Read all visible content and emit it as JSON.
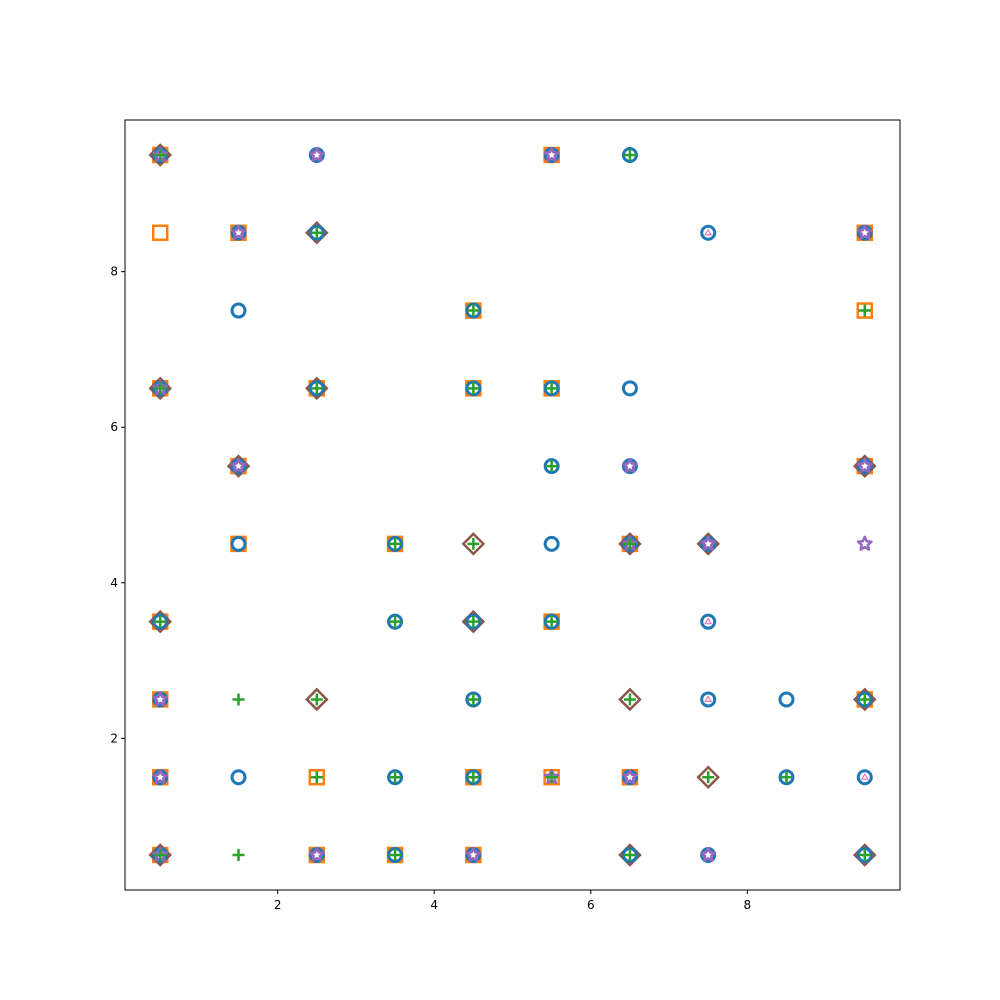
{
  "chart_data": {
    "type": "scatter",
    "title": "",
    "xlabel": "",
    "ylabel": "",
    "xlim": [
      0.05,
      9.95
    ],
    "ylim": [
      0.05,
      9.95
    ],
    "grid": false,
    "legend": "none",
    "x_ticks": [
      2,
      4,
      6,
      8
    ],
    "y_ticks": [
      2,
      4,
      6,
      8
    ],
    "x_tick_labels": [
      "2",
      "4",
      "6",
      "8"
    ],
    "y_tick_labels": [
      "2",
      "4",
      "6",
      "8"
    ],
    "series": [
      {
        "marker": "square",
        "color": "#ff7f0e",
        "points": [
          [
            0.5,
            9.5
          ],
          [
            5.5,
            9.5
          ],
          [
            0.5,
            8.5
          ],
          [
            1.5,
            8.5
          ],
          [
            9.5,
            8.5
          ],
          [
            4.5,
            7.5
          ],
          [
            9.5,
            7.5
          ],
          [
            0.5,
            6.5
          ],
          [
            2.5,
            6.5
          ],
          [
            4.5,
            6.5
          ],
          [
            5.5,
            6.5
          ],
          [
            1.5,
            5.5
          ],
          [
            9.5,
            5.5
          ],
          [
            1.5,
            4.5
          ],
          [
            3.5,
            4.5
          ],
          [
            6.5,
            4.5
          ],
          [
            0.5,
            3.5
          ],
          [
            5.5,
            3.5
          ],
          [
            0.5,
            2.5
          ],
          [
            9.5,
            2.5
          ],
          [
            0.5,
            1.5
          ],
          [
            2.5,
            1.5
          ],
          [
            4.5,
            1.5
          ],
          [
            5.5,
            1.5
          ],
          [
            6.5,
            1.5
          ],
          [
            0.5,
            0.5
          ],
          [
            2.5,
            0.5
          ],
          [
            3.5,
            0.5
          ],
          [
            4.5,
            0.5
          ]
        ]
      },
      {
        "marker": "diamond",
        "color": "#8c564b",
        "points": [
          [
            0.5,
            9.5
          ],
          [
            2.5,
            8.5
          ],
          [
            0.5,
            6.5
          ],
          [
            2.5,
            6.5
          ],
          [
            1.5,
            5.5
          ],
          [
            9.5,
            5.5
          ],
          [
            4.5,
            4.5
          ],
          [
            6.5,
            4.5
          ],
          [
            7.5,
            4.5
          ],
          [
            0.5,
            3.5
          ],
          [
            4.5,
            3.5
          ],
          [
            2.5,
            2.5
          ],
          [
            6.5,
            2.5
          ],
          [
            9.5,
            2.5
          ],
          [
            7.5,
            1.5
          ],
          [
            0.5,
            0.5
          ],
          [
            6.5,
            0.5
          ],
          [
            9.5,
            0.5
          ]
        ]
      },
      {
        "marker": "circle",
        "color": "#1f77b4",
        "points": [
          [
            0.5,
            9.5
          ],
          [
            2.5,
            9.5
          ],
          [
            5.5,
            9.5
          ],
          [
            6.5,
            9.5
          ],
          [
            1.5,
            8.5
          ],
          [
            2.5,
            8.5
          ],
          [
            7.5,
            8.5
          ],
          [
            9.5,
            8.5
          ],
          [
            1.5,
            7.5
          ],
          [
            4.5,
            7.5
          ],
          [
            0.5,
            6.5
          ],
          [
            2.5,
            6.5
          ],
          [
            4.5,
            6.5
          ],
          [
            5.5,
            6.5
          ],
          [
            6.5,
            6.5
          ],
          [
            1.5,
            5.5
          ],
          [
            5.5,
            5.5
          ],
          [
            6.5,
            5.5
          ],
          [
            9.5,
            5.5
          ],
          [
            1.5,
            4.5
          ],
          [
            3.5,
            4.5
          ],
          [
            5.5,
            4.5
          ],
          [
            6.5,
            4.5
          ],
          [
            7.5,
            4.5
          ],
          [
            0.5,
            3.5
          ],
          [
            3.5,
            3.5
          ],
          [
            4.5,
            3.5
          ],
          [
            5.5,
            3.5
          ],
          [
            7.5,
            3.5
          ],
          [
            0.5,
            2.5
          ],
          [
            4.5,
            2.5
          ],
          [
            7.5,
            2.5
          ],
          [
            8.5,
            2.5
          ],
          [
            9.5,
            2.5
          ],
          [
            0.5,
            1.5
          ],
          [
            1.5,
            1.5
          ],
          [
            3.5,
            1.5
          ],
          [
            4.5,
            1.5
          ],
          [
            6.5,
            1.5
          ],
          [
            8.5,
            1.5
          ],
          [
            9.5,
            1.5
          ],
          [
            0.5,
            0.5
          ],
          [
            2.5,
            0.5
          ],
          [
            3.5,
            0.5
          ],
          [
            4.5,
            0.5
          ],
          [
            6.5,
            0.5
          ],
          [
            7.5,
            0.5
          ],
          [
            9.5,
            0.5
          ]
        ]
      },
      {
        "marker": "star",
        "color": "#9467bd",
        "points": [
          [
            0.5,
            9.5
          ],
          [
            2.5,
            9.5
          ],
          [
            5.5,
            9.5
          ],
          [
            1.5,
            8.5
          ],
          [
            9.5,
            8.5
          ],
          [
            0.5,
            6.5
          ],
          [
            1.5,
            5.5
          ],
          [
            6.5,
            5.5
          ],
          [
            9.5,
            5.5
          ],
          [
            6.5,
            4.5
          ],
          [
            7.5,
            4.5
          ],
          [
            9.5,
            4.5
          ],
          [
            0.5,
            2.5
          ],
          [
            0.5,
            1.5
          ],
          [
            5.5,
            1.5
          ],
          [
            6.5,
            1.5
          ],
          [
            0.5,
            0.5
          ],
          [
            2.5,
            0.5
          ],
          [
            4.5,
            0.5
          ],
          [
            7.5,
            0.5
          ]
        ]
      },
      {
        "marker": "triangle",
        "color": "#e377c2",
        "points": [
          [
            7.5,
            8.5
          ],
          [
            7.5,
            3.5
          ],
          [
            7.5,
            2.5
          ],
          [
            9.5,
            1.5
          ]
        ]
      },
      {
        "marker": "plus",
        "color": "#2ca02c",
        "points": [
          [
            0.5,
            9.5
          ],
          [
            6.5,
            9.5
          ],
          [
            2.5,
            8.5
          ],
          [
            4.5,
            7.5
          ],
          [
            9.5,
            7.5
          ],
          [
            0.5,
            6.5
          ],
          [
            2.5,
            6.5
          ],
          [
            4.5,
            6.5
          ],
          [
            5.5,
            6.5
          ],
          [
            5.5,
            5.5
          ],
          [
            3.5,
            4.5
          ],
          [
            4.5,
            4.5
          ],
          [
            6.5,
            4.5
          ],
          [
            0.5,
            3.5
          ],
          [
            3.5,
            3.5
          ],
          [
            4.5,
            3.5
          ],
          [
            5.5,
            3.5
          ],
          [
            1.5,
            2.5
          ],
          [
            2.5,
            2.5
          ],
          [
            4.5,
            2.5
          ],
          [
            6.5,
            2.5
          ],
          [
            9.5,
            2.5
          ],
          [
            2.5,
            1.5
          ],
          [
            3.5,
            1.5
          ],
          [
            4.5,
            1.5
          ],
          [
            5.5,
            1.5
          ],
          [
            7.5,
            1.5
          ],
          [
            8.5,
            1.5
          ],
          [
            0.5,
            0.5
          ],
          [
            1.5,
            0.5
          ],
          [
            3.5,
            0.5
          ],
          [
            6.5,
            0.5
          ],
          [
            9.5,
            0.5
          ]
        ]
      }
    ]
  }
}
